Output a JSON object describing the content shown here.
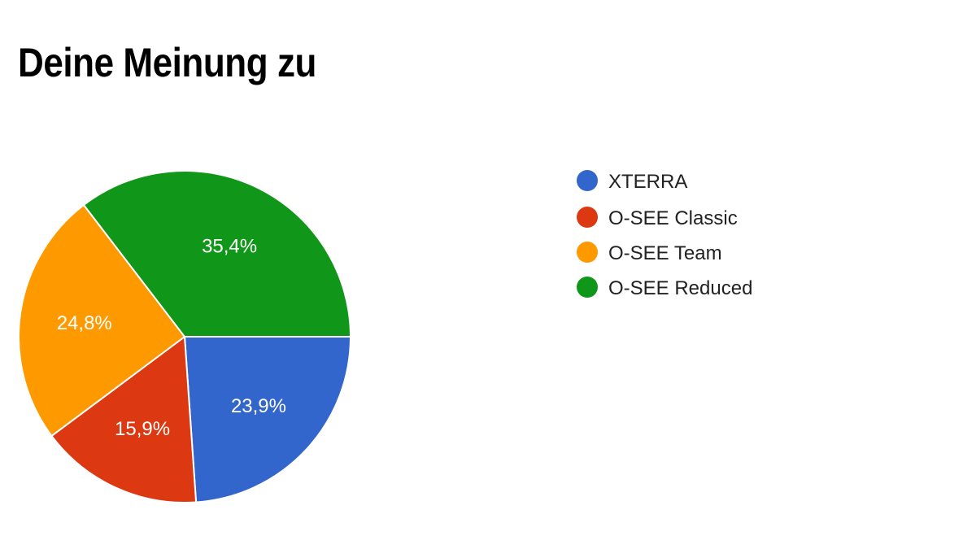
{
  "chart_data": {
    "type": "pie",
    "title": "Deine Meinung zu",
    "legend_position": "right",
    "categories": [
      "XTERRA",
      "O-SEE Classic",
      "O-SEE Team",
      "O-SEE Reduced"
    ],
    "values": [
      23.9,
      15.9,
      24.8,
      35.4
    ],
    "value_labels": [
      "23,9%",
      "15,9%",
      "24,8%",
      "35,4%"
    ],
    "colors": [
      "#3366cc",
      "#dc3912",
      "#ff9900",
      "#109618"
    ]
  }
}
